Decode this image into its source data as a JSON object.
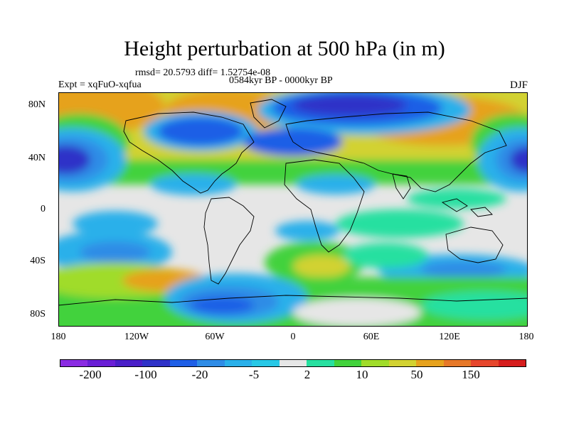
{
  "title": "Height perturbation at 500 hPa (in m)",
  "stats_line": "rmsd= 20.5793 diff= 1.52754e-08",
  "period_line": "0584kyr BP - 0000kyr BP",
  "experiment_label": "Expt = xqFuO-xqfua",
  "season_label": "DJF",
  "lat_ticks": [
    "80N",
    "40N",
    "0",
    "40S",
    "80S"
  ],
  "lon_ticks": [
    "180",
    "120W",
    "60W",
    "0",
    "60E",
    "120E",
    "180"
  ],
  "colorbar": {
    "colors": [
      "#8a2be2",
      "#6a1fd6",
      "#4a1fc8",
      "#2f32c8",
      "#1f5fe6",
      "#2f8ce6",
      "#2ab0ea",
      "#28c8e6",
      "#e6e6e6",
      "#28e0a0",
      "#42d23c",
      "#a0dc2a",
      "#d2d232",
      "#e6a21e",
      "#e67828",
      "#e6462c",
      "#d61e1e"
    ],
    "labels": [
      "-200",
      "-100",
      "-20",
      "-5",
      "2",
      "10",
      "50",
      "150"
    ]
  },
  "map_colors": {
    "neutral": "#e6e6e6",
    "cyan": "#2ab0ea",
    "lightblue": "#2f8ce6",
    "blue": "#1f5fe6",
    "darkblue": "#2f32c8",
    "purple": "#4a1fc8",
    "teal": "#28e0a0",
    "green": "#42d23c",
    "yellowgreen": "#a0dc2a",
    "yellow": "#d2d232",
    "orange": "#e6a21e",
    "darkorange": "#e67828"
  }
}
